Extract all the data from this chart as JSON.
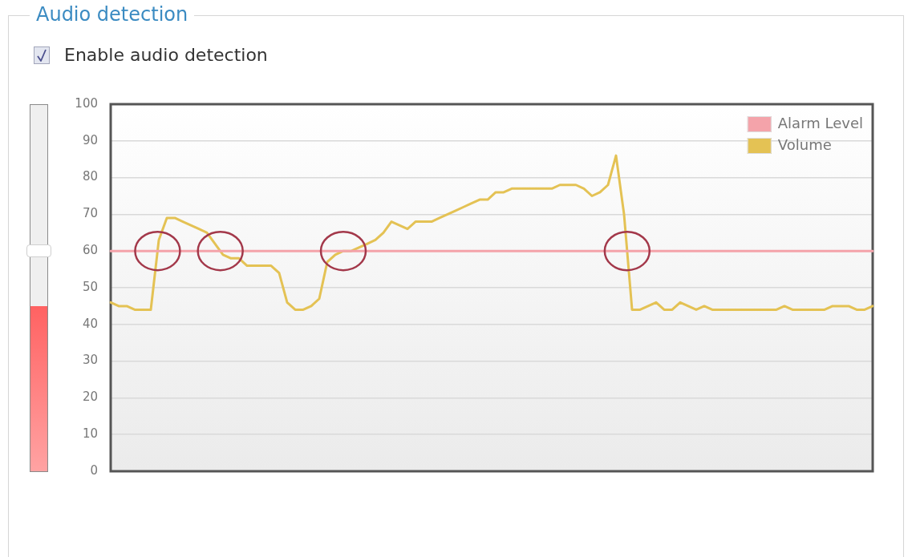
{
  "chart_data": {
    "type": "line",
    "title": "Audio detection",
    "annotations": [
      "Enable audio detection"
    ],
    "categories": [
      null,
      null,
      null,
      null,
      null,
      null,
      null,
      null,
      null,
      null,
      null,
      null,
      null,
      null,
      null,
      null,
      null,
      null,
      null,
      null,
      null,
      null,
      null,
      null,
      null,
      null,
      null,
      null,
      null,
      null,
      null,
      null,
      null,
      null,
      null,
      null,
      null,
      null,
      null,
      null,
      null,
      null,
      null,
      null,
      null,
      null,
      null,
      null,
      null,
      null,
      null,
      null,
      null,
      null,
      null,
      null,
      null,
      null,
      null,
      null,
      null,
      null,
      null,
      null,
      null,
      null,
      null,
      null,
      null,
      null,
      null,
      null,
      null,
      null,
      null,
      null,
      null,
      null,
      null,
      null,
      null,
      null,
      null,
      null,
      null,
      null,
      null,
      null,
      null,
      null,
      null,
      null,
      null,
      null,
      null,
      null
    ],
    "series": [
      {
        "name": "Alarm Level",
        "color": "#f4a3aa",
        "values": [
          60,
          60,
          60,
          60,
          60,
          60,
          60,
          60,
          60,
          60,
          60,
          60,
          60,
          60,
          60,
          60,
          60,
          60,
          60,
          60,
          60,
          60,
          60,
          60,
          60,
          60,
          60,
          60,
          60,
          60,
          60,
          60,
          60,
          60,
          60,
          60,
          60,
          60,
          60,
          60,
          60,
          60,
          60,
          60,
          60,
          60,
          60,
          60,
          60,
          60,
          60,
          60,
          60,
          60,
          60,
          60,
          60,
          60,
          60,
          60,
          60,
          60,
          60,
          60,
          60,
          60,
          60,
          60,
          60,
          60,
          60,
          60,
          60,
          60,
          60,
          60,
          60,
          60,
          60,
          60,
          60,
          60,
          60,
          60,
          60,
          60,
          60,
          60,
          60,
          60,
          60,
          60,
          60,
          60,
          60,
          60
        ]
      },
      {
        "name": "Volume",
        "color": "#e4c254",
        "values": [
          46,
          45,
          45,
          44,
          44,
          44,
          63,
          69,
          69,
          68,
          67,
          66,
          65,
          62,
          59,
          58,
          58,
          56,
          56,
          56,
          56,
          54,
          46,
          44,
          44,
          45,
          47,
          57,
          59,
          60,
          60,
          61,
          62,
          63,
          65,
          68,
          67,
          66,
          68,
          68,
          68,
          69,
          70,
          71,
          72,
          73,
          74,
          74,
          76,
          76,
          77,
          77,
          77,
          77,
          77,
          77,
          78,
          78,
          78,
          77,
          75,
          76,
          78,
          86,
          70,
          44,
          44,
          45,
          46,
          44,
          44,
          46,
          45,
          44,
          45,
          44,
          44,
          44,
          44,
          44,
          44,
          44,
          44,
          44,
          45,
          44,
          44,
          44,
          44,
          44,
          45,
          45,
          45,
          44,
          44,
          45
        ]
      }
    ],
    "ylim": [
      0,
      100
    ],
    "yticks": [
      0,
      10,
      20,
      30,
      40,
      50,
      60,
      70,
      80,
      90,
      100
    ],
    "grid": "y",
    "legend": "top right",
    "marker": "none",
    "line_style": "solid"
  }
}
